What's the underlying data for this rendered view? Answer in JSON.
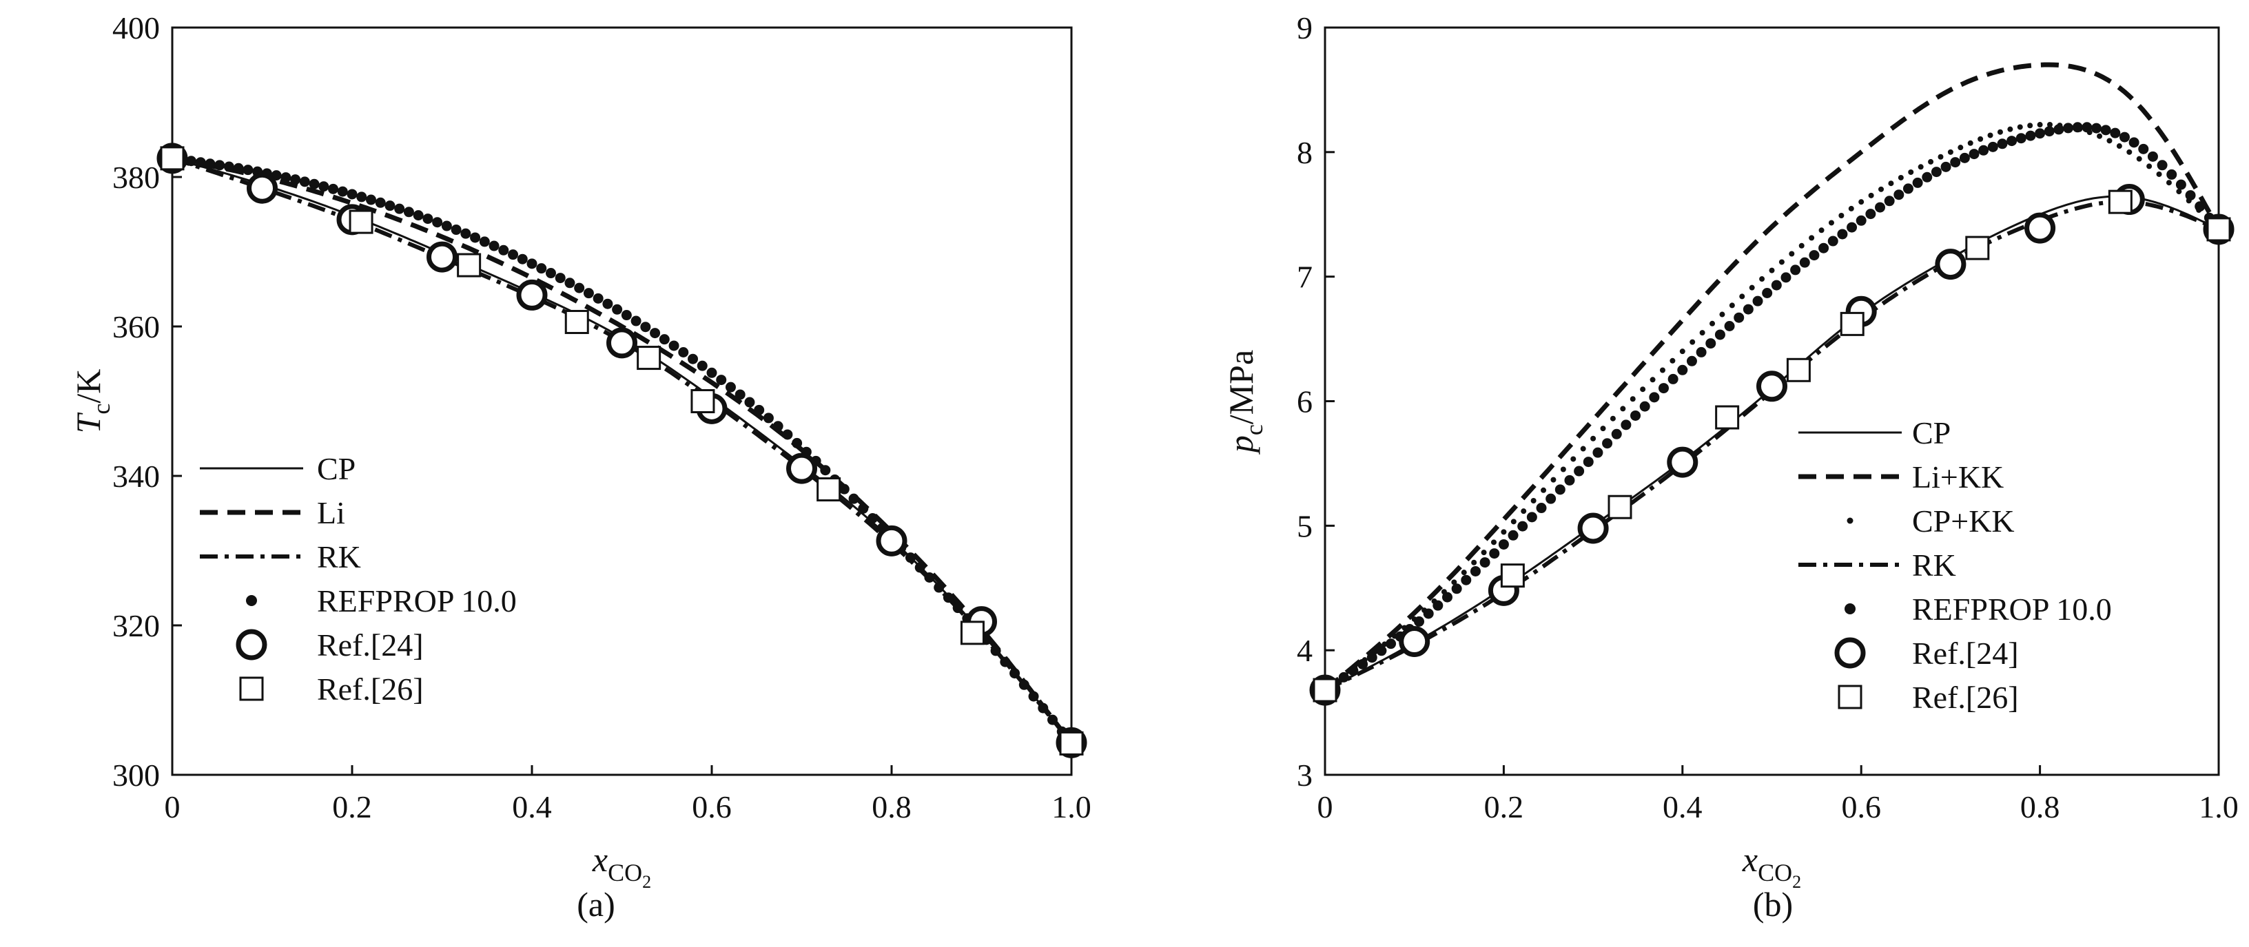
{
  "chart_data": [
    {
      "type": "line",
      "panel_label": "(a)",
      "xlabel": "x_CO2",
      "ylabel": "T_c/K",
      "xlim": [
        0,
        1.0
      ],
      "ylim": [
        300,
        400
      ],
      "xticks": [
        "0",
        "0.2",
        "0.4",
        "0.6",
        "0.8",
        "1.0"
      ],
      "yticks": [
        "300",
        "320",
        "340",
        "360",
        "380",
        "400"
      ],
      "legend_position": "bottom-left",
      "series": [
        {
          "name": "CP",
          "style": "solid",
          "x": [
            0,
            0.1,
            0.2,
            0.3,
            0.4,
            0.5,
            0.6,
            0.7,
            0.8,
            0.9,
            1.0
          ],
          "y": [
            382.5,
            379.0,
            374.8,
            369.8,
            364.5,
            358.5,
            350.5,
            341.5,
            331.5,
            319.0,
            304.2
          ]
        },
        {
          "name": "Li",
          "style": "dashed",
          "x": [
            0,
            0.1,
            0.2,
            0.3,
            0.4,
            0.5,
            0.6,
            0.7,
            0.8,
            0.9,
            1.0
          ],
          "y": [
            382.5,
            380.0,
            376.5,
            372.0,
            366.5,
            360.0,
            352.5,
            343.5,
            332.5,
            319.5,
            304.2
          ]
        },
        {
          "name": "RK",
          "style": "dashdot",
          "x": [
            0,
            0.1,
            0.2,
            0.3,
            0.4,
            0.5,
            0.6,
            0.7,
            0.8,
            0.9,
            1.0
          ],
          "y": [
            382.5,
            378.5,
            374.2,
            369.2,
            364.0,
            358.0,
            350.0,
            341.0,
            331.0,
            318.8,
            304.2
          ]
        },
        {
          "name": "REFPROP 10.0",
          "style": "dots",
          "x": [
            0,
            0.1,
            0.2,
            0.3,
            0.4,
            0.5,
            0.6,
            0.7,
            0.8,
            0.9,
            1.0
          ],
          "y": [
            382.5,
            380.6,
            377.7,
            373.7,
            368.4,
            361.9,
            353.8,
            343.8,
            331.7,
            318.8,
            304.2
          ]
        },
        {
          "name": "Ref.[24]",
          "style": "circle",
          "x": [
            0,
            0.1,
            0.2,
            0.3,
            0.4,
            0.5,
            0.6,
            0.7,
            0.8,
            0.9,
            1.0
          ],
          "y": [
            382.5,
            378.5,
            374.3,
            369.3,
            364.2,
            357.8,
            349.0,
            341.0,
            331.3,
            320.5,
            304.3
          ]
        },
        {
          "name": "Ref.[26]",
          "style": "square",
          "x": [
            0,
            0.21,
            0.33,
            0.45,
            0.53,
            0.59,
            0.73,
            0.89,
            1.0
          ],
          "y": [
            382.5,
            374.0,
            368.2,
            360.6,
            355.8,
            350.0,
            338.2,
            319.0,
            304.2
          ]
        }
      ]
    },
    {
      "type": "line",
      "panel_label": "(b)",
      "xlabel": "x_CO2",
      "ylabel": "p_c/MPa",
      "xlim": [
        0,
        1.0
      ],
      "ylim": [
        3,
        9
      ],
      "xticks": [
        "0",
        "0.2",
        "0.4",
        "0.6",
        "0.8",
        "1.0"
      ],
      "yticks": [
        "3",
        "4",
        "5",
        "6",
        "7",
        "8",
        "9"
      ],
      "legend_position": "bottom-right",
      "series": [
        {
          "name": "CP",
          "style": "solid",
          "x": [
            0,
            0.1,
            0.2,
            0.3,
            0.4,
            0.5,
            0.6,
            0.7,
            0.8,
            0.9,
            1.0
          ],
          "y": [
            3.68,
            4.06,
            4.5,
            5.0,
            5.52,
            6.1,
            6.7,
            7.15,
            7.5,
            7.64,
            7.38
          ]
        },
        {
          "name": "Li+KK",
          "style": "dashed",
          "x": [
            0,
            0.1,
            0.2,
            0.3,
            0.4,
            0.5,
            0.6,
            0.7,
            0.8,
            0.9,
            0.95,
            1.0
          ],
          "y": [
            3.68,
            4.3,
            5.05,
            5.85,
            6.65,
            7.4,
            8.0,
            8.5,
            8.7,
            8.45,
            8.0,
            7.38
          ]
        },
        {
          "name": "CP+KK",
          "style": "small-dots",
          "x": [
            0,
            0.1,
            0.2,
            0.3,
            0.4,
            0.5,
            0.6,
            0.7,
            0.8,
            0.9,
            1.0
          ],
          "y": [
            3.68,
            4.25,
            4.95,
            5.7,
            6.4,
            7.05,
            7.6,
            8.0,
            8.22,
            8.0,
            7.38
          ]
        },
        {
          "name": "RK",
          "style": "dashdot",
          "x": [
            0,
            0.1,
            0.2,
            0.3,
            0.4,
            0.5,
            0.6,
            0.7,
            0.8,
            0.9,
            1.0
          ],
          "y": [
            3.68,
            4.04,
            4.46,
            4.96,
            5.49,
            6.08,
            6.66,
            7.12,
            7.45,
            7.6,
            7.38
          ]
        },
        {
          "name": "REFPROP 10.0",
          "style": "dots",
          "x": [
            0,
            0.1,
            0.2,
            0.3,
            0.4,
            0.5,
            0.6,
            0.7,
            0.8,
            0.85,
            0.9,
            0.95,
            1.0
          ],
          "y": [
            3.68,
            4.2,
            4.85,
            5.55,
            6.25,
            6.9,
            7.45,
            7.9,
            8.15,
            8.2,
            8.1,
            7.8,
            7.38
          ]
        },
        {
          "name": "Ref.[24]",
          "style": "circle",
          "x": [
            0,
            0.1,
            0.2,
            0.3,
            0.4,
            0.5,
            0.6,
            0.7,
            0.8,
            0.9,
            1.0
          ],
          "y": [
            3.68,
            4.07,
            4.48,
            4.98,
            5.51,
            6.12,
            6.72,
            7.1,
            7.39,
            7.62,
            7.38
          ]
        },
        {
          "name": "Ref.[26]",
          "style": "square",
          "x": [
            0,
            0.21,
            0.33,
            0.45,
            0.53,
            0.59,
            0.73,
            0.89,
            1.0
          ],
          "y": [
            3.68,
            4.6,
            5.15,
            5.87,
            6.25,
            6.62,
            7.23,
            7.6,
            7.38
          ]
        }
      ]
    }
  ]
}
